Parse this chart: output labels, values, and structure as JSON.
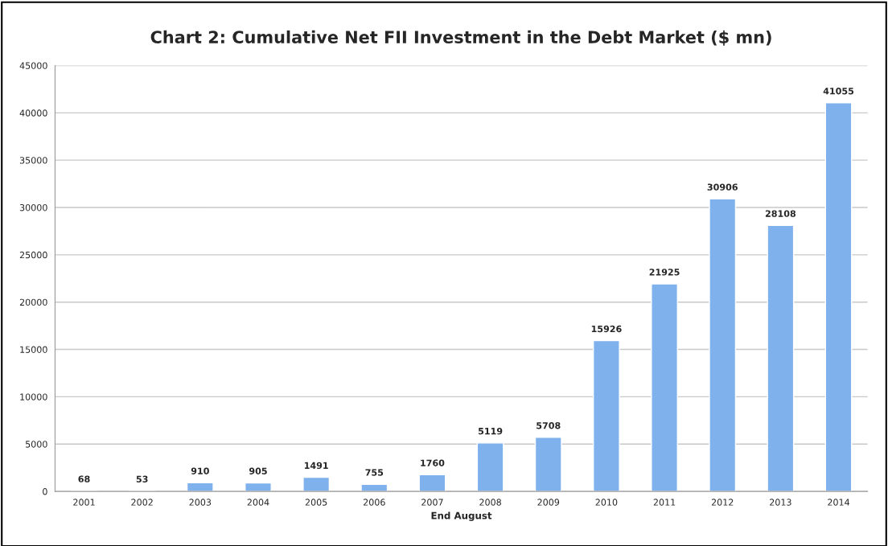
{
  "chart_data": {
    "type": "bar",
    "title": "Chart 2: Cumulative Net FII Investment in the Debt Market ($ mn)",
    "xlabel": "End August",
    "categories": [
      "2001",
      "2002",
      "2003",
      "2004",
      "2005",
      "2006",
      "2007",
      "2008",
      "2009",
      "2010",
      "2011",
      "2012",
      "2013",
      "2014"
    ],
    "values": [
      68,
      53,
      910,
      905,
      1491,
      755,
      1760,
      5119,
      5708,
      15926,
      21925,
      30906,
      28108,
      41055
    ],
    "color": "#7fb1ec",
    "ylim": [
      0,
      45000
    ],
    "yticks": [
      0,
      5000,
      10000,
      15000,
      20000,
      25000,
      30000,
      35000,
      40000,
      45000
    ],
    "grid": "y",
    "data_labels": true,
    "legend": false
  }
}
